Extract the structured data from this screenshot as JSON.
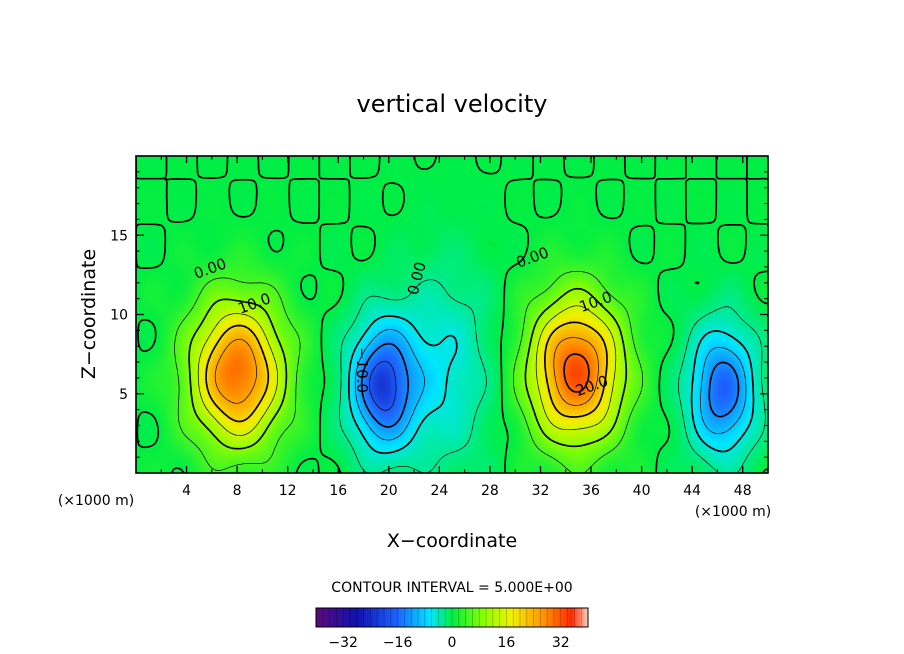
{
  "chart_data": {
    "type": "contour",
    "title": "vertical velocity",
    "xlabel": "X−coordinate",
    "ylabel": "Z−coordinate",
    "x_unit_note": "(×1000 m)",
    "y_unit_note": "(×1000 m)",
    "xlim": [
      0,
      50
    ],
    "ylim": [
      0,
      20
    ],
    "x_ticks": [
      4,
      8,
      12,
      16,
      20,
      24,
      28,
      32,
      36,
      40,
      44,
      48
    ],
    "y_ticks": [
      5,
      10,
      15
    ],
    "contour_interval_label": "CONTOUR INTERVAL = 5.000E+00",
    "colorbar": {
      "min": -40,
      "max": 40,
      "ticks": [
        -32,
        -16,
        0,
        16,
        32
      ],
      "tick_labels": [
        "−32",
        "−16",
        "0",
        "16",
        "32"
      ]
    },
    "contour_labels": [
      {
        "text": "0.00",
        "x": 6,
        "z": 12.6
      },
      {
        "text": "10.0",
        "x": 9.5,
        "z": 10.4
      },
      {
        "text": "−10.0",
        "x": 17.5,
        "z": 6.5
      },
      {
        "text": "0.00",
        "x": 22.6,
        "z": 12.2
      },
      {
        "text": "0.00",
        "x": 31.5,
        "z": 13.3
      },
      {
        "text": "10.0",
        "x": 36.5,
        "z": 10.5
      },
      {
        "text": "20.0",
        "x": 36.2,
        "z": 5.2
      }
    ],
    "field_features": [
      {
        "kind": "updraft",
        "x": 8,
        "z": 6.3,
        "peak": 30
      },
      {
        "kind": "downdraft",
        "x": 19.5,
        "z": 5.5,
        "peak": -27
      },
      {
        "kind": "downdraft",
        "x": 24.5,
        "z": 6.5,
        "peak": -10
      },
      {
        "kind": "updraft",
        "x": 34.8,
        "z": 6.5,
        "peak": 32
      },
      {
        "kind": "downdraft",
        "x": 46.4,
        "z": 5.2,
        "peak": -24
      }
    ]
  }
}
